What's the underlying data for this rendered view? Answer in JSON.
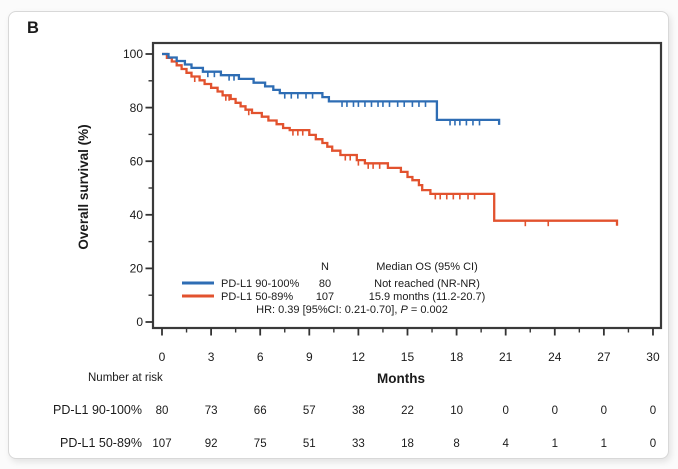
{
  "figure": {
    "panel_label": "B"
  },
  "chart_data": {
    "type": "line",
    "subtype": "kaplan-meier-survival",
    "title": "",
    "xlabel": "Months",
    "ylabel": "Overall survival (%)",
    "xlim": [
      0,
      30
    ],
    "ylim": [
      0,
      100
    ],
    "xticks": [
      0,
      3,
      6,
      9,
      12,
      15,
      18,
      21,
      24,
      27,
      30
    ],
    "yticks": [
      0,
      20,
      40,
      60,
      80,
      100
    ],
    "grid": false,
    "legend_position": "inside-bottom-center",
    "series": [
      {
        "name": "PD-L1 90-100%",
        "color": "#2e6db4",
        "n": 80,
        "median_os": "Not reached (NR-NR)",
        "steps": [
          [
            0,
            100
          ],
          [
            0.4,
            98.7
          ],
          [
            0.9,
            97.4
          ],
          [
            1.4,
            96.1
          ],
          [
            1.8,
            94.8
          ],
          [
            2.5,
            93.4
          ],
          [
            3.6,
            92.1
          ],
          [
            4.7,
            90.7
          ],
          [
            5.6,
            89.3
          ],
          [
            6.3,
            87.9
          ],
          [
            6.8,
            86.6
          ],
          [
            7.2,
            85.4
          ],
          [
            9.8,
            83.9
          ],
          [
            10.2,
            82.3
          ],
          [
            16.8,
            75.4
          ]
        ],
        "end_month": 20.6,
        "censor_months": [
          2.8,
          3.2,
          4.1,
          4.4,
          7.5,
          7.9,
          8.3,
          8.8,
          9.2,
          11.0,
          11.3,
          11.7,
          12.0,
          12.4,
          12.8,
          13.2,
          13.5,
          13.9,
          14.4,
          14.8,
          15.3,
          15.7,
          16.1,
          17.6,
          17.9,
          18.2,
          18.6,
          19.0,
          19.4
        ]
      },
      {
        "name": "PD-L1 50-89%",
        "color": "#e2522e",
        "n": 107,
        "median_os": "15.9 months (11.2-20.7)",
        "steps": [
          [
            0,
            100
          ],
          [
            0.3,
            98.6
          ],
          [
            0.6,
            97.2
          ],
          [
            0.9,
            95.8
          ],
          [
            1.2,
            94.4
          ],
          [
            1.5,
            93.0
          ],
          [
            1.8,
            91.6
          ],
          [
            2.3,
            90.2
          ],
          [
            2.6,
            88.8
          ],
          [
            3.0,
            87.4
          ],
          [
            3.4,
            86.0
          ],
          [
            3.7,
            84.6
          ],
          [
            4.2,
            83.2
          ],
          [
            4.5,
            81.8
          ],
          [
            4.8,
            80.5
          ],
          [
            5.1,
            79.2
          ],
          [
            5.5,
            78.0
          ],
          [
            6.1,
            76.6
          ],
          [
            6.5,
            75.2
          ],
          [
            7.0,
            73.8
          ],
          [
            7.4,
            72.4
          ],
          [
            7.8,
            71.6
          ],
          [
            9.0,
            69.8
          ],
          [
            9.4,
            68.2
          ],
          [
            9.8,
            66.8
          ],
          [
            10.1,
            65.4
          ],
          [
            10.4,
            63.9
          ],
          [
            10.9,
            62.3
          ],
          [
            11.9,
            60.4
          ],
          [
            12.4,
            59.2
          ],
          [
            13.8,
            57.5
          ],
          [
            14.6,
            56.0
          ],
          [
            15.0,
            54.1
          ],
          [
            15.3,
            52.9
          ],
          [
            15.7,
            51.1
          ],
          [
            15.9,
            49.2
          ],
          [
            16.4,
            47.8
          ],
          [
            20.3,
            37.8
          ]
        ],
        "end_month": 27.8,
        "censor_months": [
          2.0,
          3.9,
          4.1,
          5.3,
          8.0,
          8.3,
          8.6,
          11.2,
          11.5,
          12.0,
          12.6,
          12.9,
          13.3,
          16.7,
          17.0,
          17.4,
          17.8,
          18.2,
          18.7,
          19.1,
          22.2,
          23.6
        ]
      }
    ],
    "legend": {
      "col_n_header": "N",
      "col_median_header": "Median OS (95% CI)",
      "hr_prefix": "HR: 0.39 [95%CI: 0.21-0.70], ",
      "hr_p": "P",
      "hr_suffix": " = 0.002"
    },
    "risk_table": {
      "header": "Number at risk",
      "months": [
        0,
        3,
        6,
        9,
        12,
        15,
        18,
        21,
        24,
        27,
        30
      ],
      "rows": [
        {
          "label": "PD-L1 90-100%",
          "values": [
            80,
            73,
            66,
            57,
            38,
            22,
            10,
            0,
            0,
            0,
            0
          ]
        },
        {
          "label": "PD-L1 50-89%",
          "values": [
            107,
            92,
            75,
            51,
            33,
            18,
            8,
            4,
            1,
            1,
            0
          ]
        }
      ]
    }
  }
}
